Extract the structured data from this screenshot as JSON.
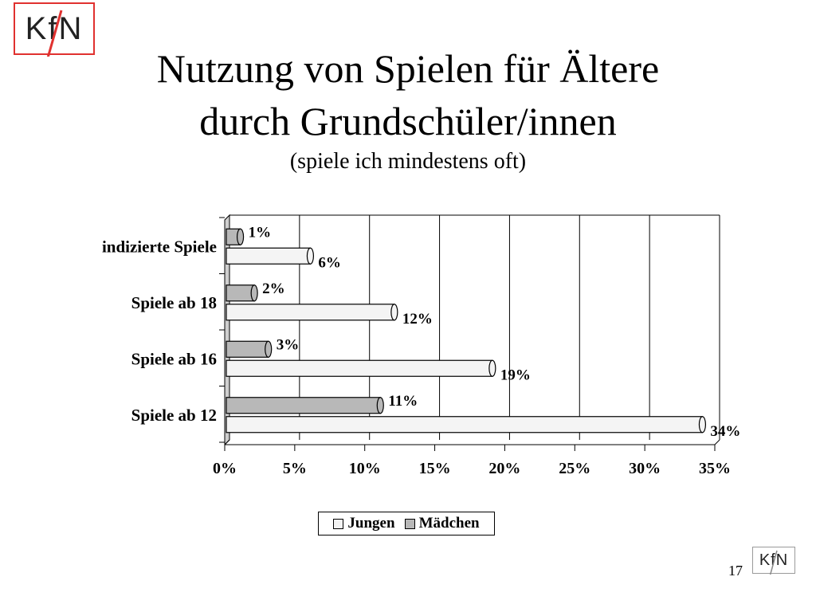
{
  "header": {
    "logo_text": "KfN",
    "title_line1": "Nutzung von Spielen für Ältere",
    "title_line2": "durch Grundschüler/innen",
    "subtitle": "(spiele ich mindestens oft)"
  },
  "footer": {
    "page_number": "17",
    "logo_text": "KfN"
  },
  "chart_data": {
    "type": "bar",
    "orientation": "horizontal",
    "categories": [
      "indizierte Spiele",
      "Spiele ab 18",
      "Spiele ab 16",
      "Spiele ab 12"
    ],
    "series": [
      {
        "name": "Mädchen",
        "values": [
          1,
          2,
          3,
          11
        ],
        "labels": [
          "1%",
          "2%",
          "3%",
          "11%"
        ],
        "color": "#b8b8b8"
      },
      {
        "name": "Jungen",
        "values": [
          6,
          12,
          19,
          34
        ],
        "labels": [
          "6%",
          "12%",
          "19%",
          "34%"
        ],
        "color": "#f4f4f4"
      }
    ],
    "xlim": [
      0,
      35
    ],
    "xticks": [
      "0%",
      "5%",
      "10%",
      "15%",
      "20%",
      "25%",
      "30%",
      "35%"
    ],
    "grid": true,
    "legend": {
      "placement": "bottom",
      "entries": [
        "Jungen",
        "Mädchen"
      ]
    }
  }
}
